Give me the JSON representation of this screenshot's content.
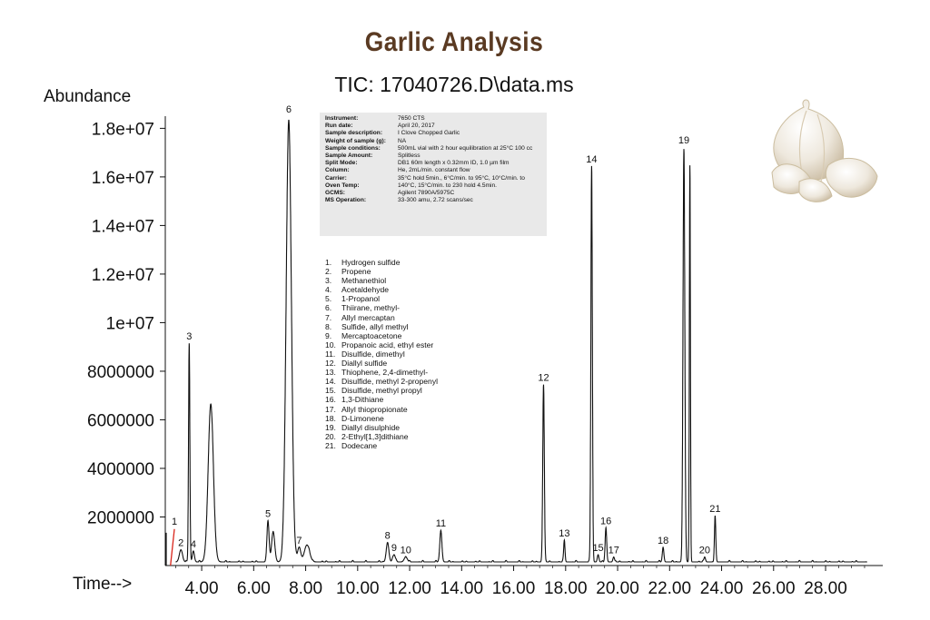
{
  "header": {
    "title": "Garlic Analysis",
    "subtitle": "TIC: 17040726.D\\data.ms",
    "ylabel": "Abundance",
    "xlabel": "Time-->"
  },
  "info_box": [
    {
      "key": "Instrument:",
      "value": "7650 CTS"
    },
    {
      "key": "Run date:",
      "value": "April 20, 2017"
    },
    {
      "key": "Sample description:",
      "value": "I Clove Chopped Garlic"
    },
    {
      "key": "Weight of sample (g):",
      "value": "NA"
    },
    {
      "key": "Sample conditions:",
      "value": "500mL vial with 2 hour equilibration at 25°C 100 cc"
    },
    {
      "key": "Sample Amount:",
      "value": "Splitless"
    },
    {
      "key": "Split Mode:",
      "value": "DB1 60m length x 0.32mm ID, 1.0 µm film"
    },
    {
      "key": "Column:",
      "value": "He, 2mL/min. constant flow"
    },
    {
      "key": "Carrier:",
      "value": "35°C hold 5min., 6°C/min. to 95°C, 10°C/min. to"
    },
    {
      "key": "Oven Temp:",
      "value": "140°C, 15°C/min. to 230 hold 4.5min."
    },
    {
      "key": "GCMS:",
      "value": "Agilent 7890A/5975C"
    },
    {
      "key": "MS Operation:",
      "value": "33-300 amu, 2.72 scans/sec"
    }
  ],
  "compounds": [
    "Hydrogen sulfide",
    "Propene",
    "Methanethiol",
    "Acetaldehyde",
    "1-Propanol",
    "Thiirane, methyl-",
    "Allyl mercaptan",
    "Sulfide, allyl methyl",
    "Mercaptoacetone",
    "Propanoic acid, ethyl ester",
    "Disulfide, dimethyl",
    "Diallyl sulfide",
    "Thiophene, 2,4-dimethyl-",
    "Disulfide, methyl 2-propenyl",
    "Disulfide, methyl propyl",
    "1,3-Dithiane",
    "Allyl thiopropionate",
    "D-Limonene",
    "Diallyl disulphide",
    "2-Ethyl[1,3]dithiane",
    "Dodecane"
  ],
  "image_icon": "garlic-bulb-photo",
  "colors": {
    "title": "#5a3a22",
    "trace": "#111111",
    "peak1": "#d9261c",
    "infobox": "#e9e9e9"
  },
  "chart_data": {
    "type": "line",
    "xlim": [
      2.6,
      30.2
    ],
    "ylim": [
      0,
      18500000
    ],
    "x_ticks": [
      "4.00",
      "6.00",
      "8.00",
      "10.00",
      "12.00",
      "14.00",
      "16.00",
      "18.00",
      "20.00",
      "22.00",
      "24.00",
      "26.00",
      "28.00"
    ],
    "x_tick_values": [
      4,
      6,
      8,
      10,
      12,
      14,
      16,
      18,
      20,
      22,
      24,
      26,
      28
    ],
    "y_ticks": [
      "2000000",
      "4000000",
      "6000000",
      "8000000",
      "1e+07",
      "1.2e+07",
      "1.4e+07",
      "1.6e+07",
      "1.8e+07"
    ],
    "y_tick_values": [
      2000000,
      4000000,
      6000000,
      8000000,
      10000000,
      12000000,
      14000000,
      16000000,
      18000000
    ],
    "baseline": 150000,
    "peaks": [
      {
        "label": "1",
        "rt": 2.9,
        "height": 1500000,
        "width": 0.25
      },
      {
        "label": "2",
        "rt": 3.2,
        "height": 500000,
        "width": 0.06
      },
      {
        "label": "3",
        "rt": 3.52,
        "height": 9000000,
        "width": 0.025
      },
      {
        "label": "4",
        "rt": 3.68,
        "height": 450000,
        "width": 0.04
      },
      {
        "label": "",
        "rt": 4.35,
        "height": 6500000,
        "width": 0.1
      },
      {
        "label": "5",
        "rt": 6.55,
        "height": 1700000,
        "width": 0.04
      },
      {
        "label": "",
        "rt": 6.75,
        "height": 1250000,
        "width": 0.06
      },
      {
        "label": "6",
        "rt": 7.35,
        "height": 18200000,
        "width": 0.1
      },
      {
        "label": "7",
        "rt": 7.75,
        "height": 600000,
        "width": 0.06
      },
      {
        "label": "",
        "rt": 8.05,
        "height": 700000,
        "width": 0.1
      },
      {
        "label": "8",
        "rt": 11.15,
        "height": 800000,
        "width": 0.05
      },
      {
        "label": "9",
        "rt": 11.4,
        "height": 300000,
        "width": 0.05
      },
      {
        "label": "10",
        "rt": 11.85,
        "height": 200000,
        "width": 0.06
      },
      {
        "label": "11",
        "rt": 13.2,
        "height": 1300000,
        "width": 0.04
      },
      {
        "label": "12",
        "rt": 17.15,
        "height": 7300000,
        "width": 0.03
      },
      {
        "label": "13",
        "rt": 17.95,
        "height": 900000,
        "width": 0.025
      },
      {
        "label": "14",
        "rt": 19.0,
        "height": 16300000,
        "width": 0.028
      },
      {
        "label": "15",
        "rt": 19.25,
        "height": 300000,
        "width": 0.03
      },
      {
        "label": "16",
        "rt": 19.55,
        "height": 1400000,
        "width": 0.03
      },
      {
        "label": "17",
        "rt": 19.85,
        "height": 200000,
        "width": 0.03
      },
      {
        "label": "18",
        "rt": 21.75,
        "height": 600000,
        "width": 0.03
      },
      {
        "label": "19",
        "rt": 22.55,
        "height": 17000000,
        "width": 0.035
      },
      {
        "label": "",
        "rt": 22.78,
        "height": 16300000,
        "width": 0.02
      },
      {
        "label": "20",
        "rt": 23.35,
        "height": 200000,
        "width": 0.03
      },
      {
        "label": "21",
        "rt": 23.75,
        "height": 1900000,
        "width": 0.025
      }
    ]
  }
}
